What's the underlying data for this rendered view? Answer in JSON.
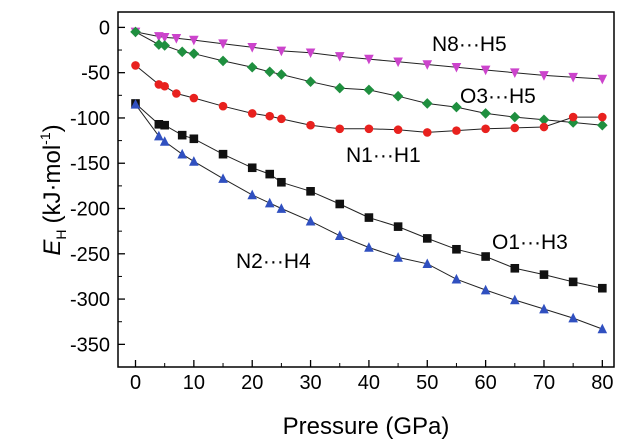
{
  "chart_data": {
    "type": "line",
    "xlabel": "Pressure (GPa)",
    "ylabel_main": "E",
    "ylabel_sub": "H",
    "ylabel_units": "(kJ·mol",
    "ylabel_sup": "-1",
    "ylabel_close": ")",
    "xlim": [
      -3,
      82
    ],
    "ylim": [
      -375,
      17
    ],
    "xticks": [
      0,
      10,
      20,
      30,
      40,
      50,
      60,
      70,
      80
    ],
    "yticks": [
      0,
      -50,
      -100,
      -150,
      -200,
      -250,
      -300,
      -350
    ],
    "series": [
      {
        "name": "N8···H5",
        "color": "#cc44cc",
        "marker": "triangle-down",
        "x": [
          0,
          4,
          5,
          7,
          10,
          15,
          20,
          25,
          30,
          35,
          40,
          45,
          50,
          55,
          60,
          65,
          70,
          75,
          80
        ],
        "y": [
          -5,
          -10,
          -11,
          -12,
          -14,
          -18,
          -22,
          -26,
          -28,
          -32,
          -35,
          -38,
          -41,
          -44,
          -47,
          -50,
          -53,
          -55,
          -57
        ]
      },
      {
        "name": "O3···H5",
        "color": "#1f8f3f",
        "marker": "diamond",
        "x": [
          0,
          4,
          5,
          8,
          10,
          15,
          20,
          23,
          25,
          30,
          35,
          40,
          45,
          50,
          55,
          60,
          65,
          70,
          75,
          80
        ],
        "y": [
          -5,
          -19,
          -20,
          -27,
          -29,
          -37,
          -44,
          -49,
          -52,
          -60,
          -67,
          -69,
          -76,
          -84,
          -88,
          -95,
          -99,
          -102,
          -105,
          -108
        ]
      },
      {
        "name": "N1···H1",
        "color": "#e8211e",
        "marker": "circle",
        "x": [
          0,
          4,
          5,
          7,
          10,
          15,
          20,
          23,
          25,
          30,
          35,
          40,
          45,
          50,
          55,
          60,
          65,
          70,
          75,
          80
        ],
        "y": [
          -42,
          -63,
          -65,
          -73,
          -78,
          -87,
          -95,
          -98,
          -101,
          -108,
          -112,
          -112,
          -113,
          -116,
          -114,
          -112,
          -111,
          -110,
          -99,
          -99
        ]
      },
      {
        "name": "O1···H3",
        "color": "#111111",
        "marker": "square",
        "x": [
          0,
          4,
          5,
          8,
          10,
          15,
          20,
          23,
          25,
          30,
          35,
          40,
          45,
          50,
          55,
          60,
          65,
          70,
          75,
          80
        ],
        "y": [
          -84,
          -107,
          -108,
          -119,
          -123,
          -140,
          -155,
          -162,
          -171,
          -181,
          -195,
          -210,
          -220,
          -233,
          -245,
          -253,
          -266,
          -273,
          -281,
          -288
        ]
      },
      {
        "name": "N2···H4",
        "color": "#3050c0",
        "marker": "triangle-up",
        "x": [
          0,
          4,
          5,
          8,
          10,
          15,
          20,
          23,
          25,
          30,
          35,
          40,
          45,
          50,
          55,
          60,
          65,
          70,
          75,
          80
        ],
        "y": [
          -85,
          -120,
          -126,
          -140,
          -148,
          -167,
          -185,
          -194,
          -200,
          -214,
          -230,
          -243,
          -254,
          -261,
          -278,
          -290,
          -301,
          -311,
          -321,
          -333
        ]
      }
    ]
  }
}
